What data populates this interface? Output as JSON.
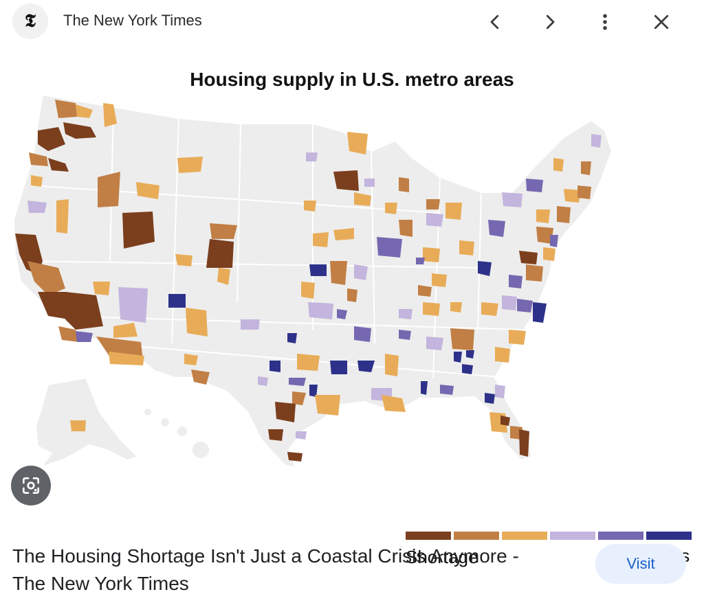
{
  "header": {
    "logo_glyph": "𝕿",
    "source_name": "The New York Times",
    "icons": [
      "chevron-left-icon",
      "chevron-right-icon",
      "more-vert-icon",
      "close-icon"
    ]
  },
  "map": {
    "title": "Housing supply in U.S. metro areas",
    "legend": {
      "left_label": "Shortage",
      "right_label": "Surplus",
      "colors": [
        "#7b3f1e",
        "#c17f45",
        "#e8ac58",
        "#c3b5dd",
        "#7568b0",
        "#2e318a"
      ]
    },
    "colors": {
      "land": "#ededed",
      "border": "#ffffff"
    }
  },
  "result": {
    "title_line1": "The Housing Shortage Isn't Just a Coastal Crisis Anymore -",
    "title_line2": "The New York Times",
    "visit_label": "Visit"
  }
}
